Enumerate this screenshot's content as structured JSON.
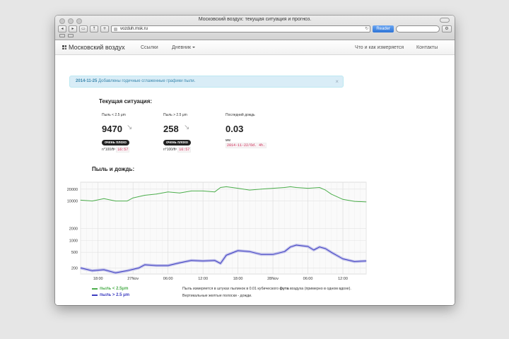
{
  "window": {
    "title": "Московский воздух: текущая ситуация и прогноз.",
    "url": "vozduh.msk.ru",
    "reader_label": "Reader",
    "reload_icon": "reload-icon"
  },
  "navbar": {
    "brand": "Московский воздух",
    "links": [
      "Ссылки",
      "Дневник"
    ],
    "right_links": [
      "Что и как измеряется",
      "Контакты"
    ]
  },
  "alert": {
    "date": "2014-11-25",
    "text": "Добавлены годичные сглаженные графики пыли.",
    "close": "×"
  },
  "current": {
    "heading": "Текущая ситуация:",
    "stats": [
      {
        "label": "Пыль < 2.5 μm",
        "value": "9470",
        "badge": "очень плохо",
        "units": "n*100/ft³",
        "time": "16:57"
      },
      {
        "label": "Пыль > 2.5 μm",
        "value": "258",
        "badge": "очень плохо",
        "units": "n*100/ft³",
        "time": "16:57"
      }
    ],
    "rain": {
      "label": "Последний дождь",
      "value": "0.03",
      "unit": "мм",
      "time": "2014-11-22/6d. 4h."
    }
  },
  "chart_heading": "Пыль и дождь:",
  "chart_data": {
    "type": "line",
    "title": "",
    "xlabel": "",
    "ylabel": "",
    "y_scale": "log",
    "yticks": [
      200,
      500,
      1000,
      2000,
      10000,
      20000
    ],
    "ytick_labels": [
      "200",
      "500",
      "1000",
      "2000",
      "10000",
      "20000"
    ],
    "xtick_labels": [
      "18:00",
      "27Nov",
      "06:00",
      "12:00",
      "18:00",
      "28Nov",
      "06:00",
      "12:00"
    ],
    "xtick_hours": [
      0,
      6,
      12,
      18,
      24,
      30,
      36,
      42
    ],
    "x_unit": "hours from 26 Nov 18:00",
    "xlim": [
      -3,
      46
    ],
    "ylim": [
      140,
      30000
    ],
    "grid": true,
    "series": [
      {
        "name": "пыль < 2.5μm",
        "color": "#4cae4c",
        "x": [
          -3,
          -1,
          1,
          3,
          5,
          6,
          8,
          10,
          12,
          14,
          16,
          18,
          20,
          21,
          22,
          24,
          26,
          28,
          30,
          32,
          33,
          34,
          36,
          38,
          39,
          40,
          42,
          44,
          46
        ],
        "y": [
          10500,
          10000,
          11500,
          10000,
          10000,
          12000,
          14000,
          15000,
          17000,
          16000,
          18000,
          18000,
          17000,
          22000,
          23000,
          21000,
          19000,
          20000,
          21000,
          22000,
          23000,
          22000,
          21000,
          22000,
          19000,
          15000,
          11000,
          9800,
          9500
        ]
      },
      {
        "name": "пыль > 2.5 μm",
        "color": "#3c3cc0",
        "x": [
          -3,
          -1,
          1,
          3,
          4,
          5,
          7,
          8,
          10,
          12,
          14,
          16,
          18,
          20,
          21,
          22,
          24,
          26,
          28,
          30,
          32,
          33,
          34,
          36,
          37,
          38,
          39,
          40,
          42,
          44,
          46
        ],
        "y": [
          200,
          170,
          180,
          150,
          160,
          170,
          200,
          240,
          230,
          230,
          270,
          310,
          300,
          310,
          260,
          420,
          550,
          520,
          440,
          440,
          520,
          680,
          760,
          700,
          570,
          680,
          620,
          500,
          340,
          290,
          300
        ]
      }
    ]
  },
  "legend": {
    "pm25": "пыль < 2.5μm",
    "pm10": "пыль > 2.5 μm"
  },
  "note": {
    "line1_prefix": "Пыль измеряется в штуках пылинок в 0.01 кубического",
    "line1_bold": "фута",
    "line1_suffix": "воздуха (примерно в одном вдохе).",
    "line2": "Вертикальные желтые полоски - дожди."
  },
  "colors": {
    "accent": "#2d74d6",
    "alert_bg": "#d9edf7",
    "alert_text": "#3a87ad",
    "green": "#4cae4c",
    "blue": "#3c3cc0"
  }
}
